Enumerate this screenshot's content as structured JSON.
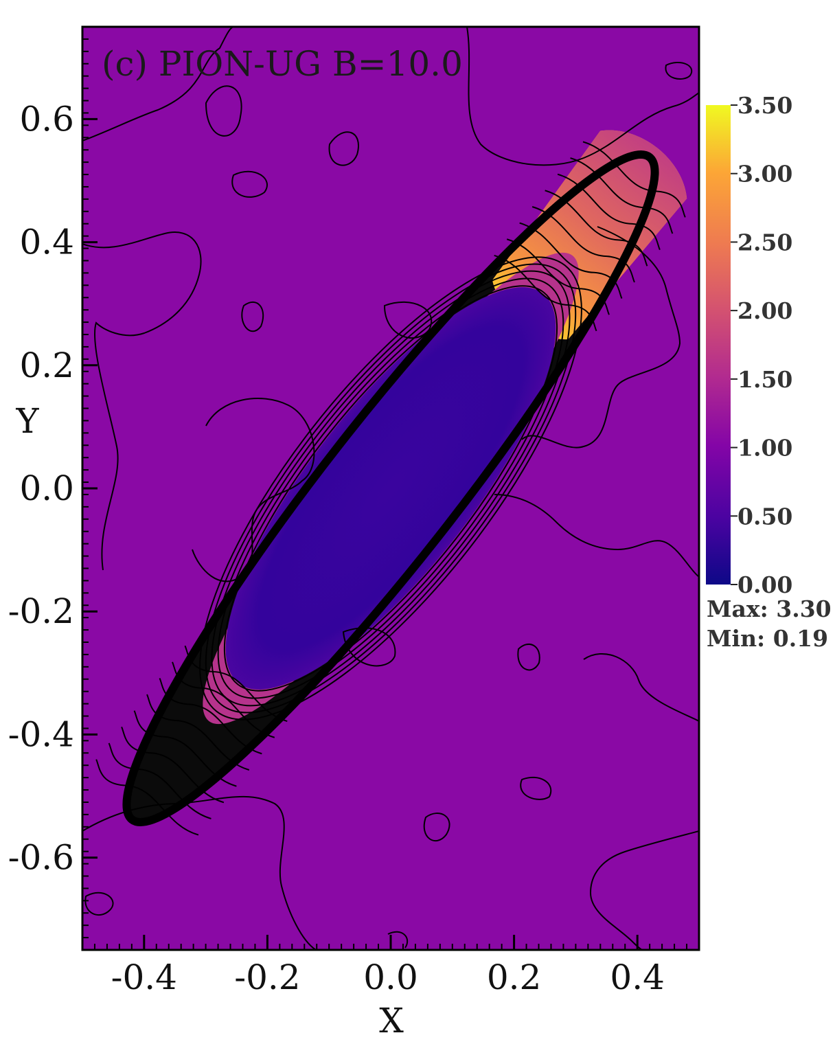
{
  "chart_data": {
    "type": "heatmap",
    "title": "(c) PION-UG B=10.0",
    "xlabel": "X",
    "ylabel": "Y",
    "xlim": [
      -0.5,
      0.5
    ],
    "ylim": [
      -0.75,
      0.75
    ],
    "xticks": [
      "-0.4",
      "-0.2",
      "0.0",
      "0.2",
      "0.4"
    ],
    "xtick_values": [
      -0.4,
      -0.2,
      0.0,
      0.2,
      0.4
    ],
    "yticks": [
      "-0.6",
      "-0.4",
      "-0.2",
      "0.0",
      "0.2",
      "0.4",
      "0.6"
    ],
    "ytick_values": [
      -0.6,
      -0.4,
      -0.2,
      0.0,
      0.2,
      0.4,
      0.6
    ],
    "colorbar": {
      "min": 0.0,
      "max": 3.5,
      "tick_values": [
        0.0,
        0.5,
        1.0,
        1.5,
        2.0,
        2.5,
        3.0,
        3.5
      ],
      "tick_labels": [
        "0.00",
        "0.50",
        "1.00",
        "1.50",
        "2.00",
        "2.50",
        "3.00",
        "3.50"
      ],
      "colormap": "plasma",
      "colors": [
        "#0d0887",
        "#5c01a6",
        "#9c179e",
        "#cc4778",
        "#ed7953",
        "#fdb42f",
        "#f0f921"
      ]
    },
    "stats": {
      "max_label": "Max: 3.30",
      "min_label": "Min: 0.19"
    },
    "field": {
      "background_value": 1.0,
      "structure": "elongated ellipse tilted along the diagonal",
      "center": [
        0.0,
        0.0
      ],
      "orientation_deg": 45,
      "core_value": 0.2,
      "shell_peak_value": 3.3
    },
    "contour_line_color": "#000000"
  }
}
